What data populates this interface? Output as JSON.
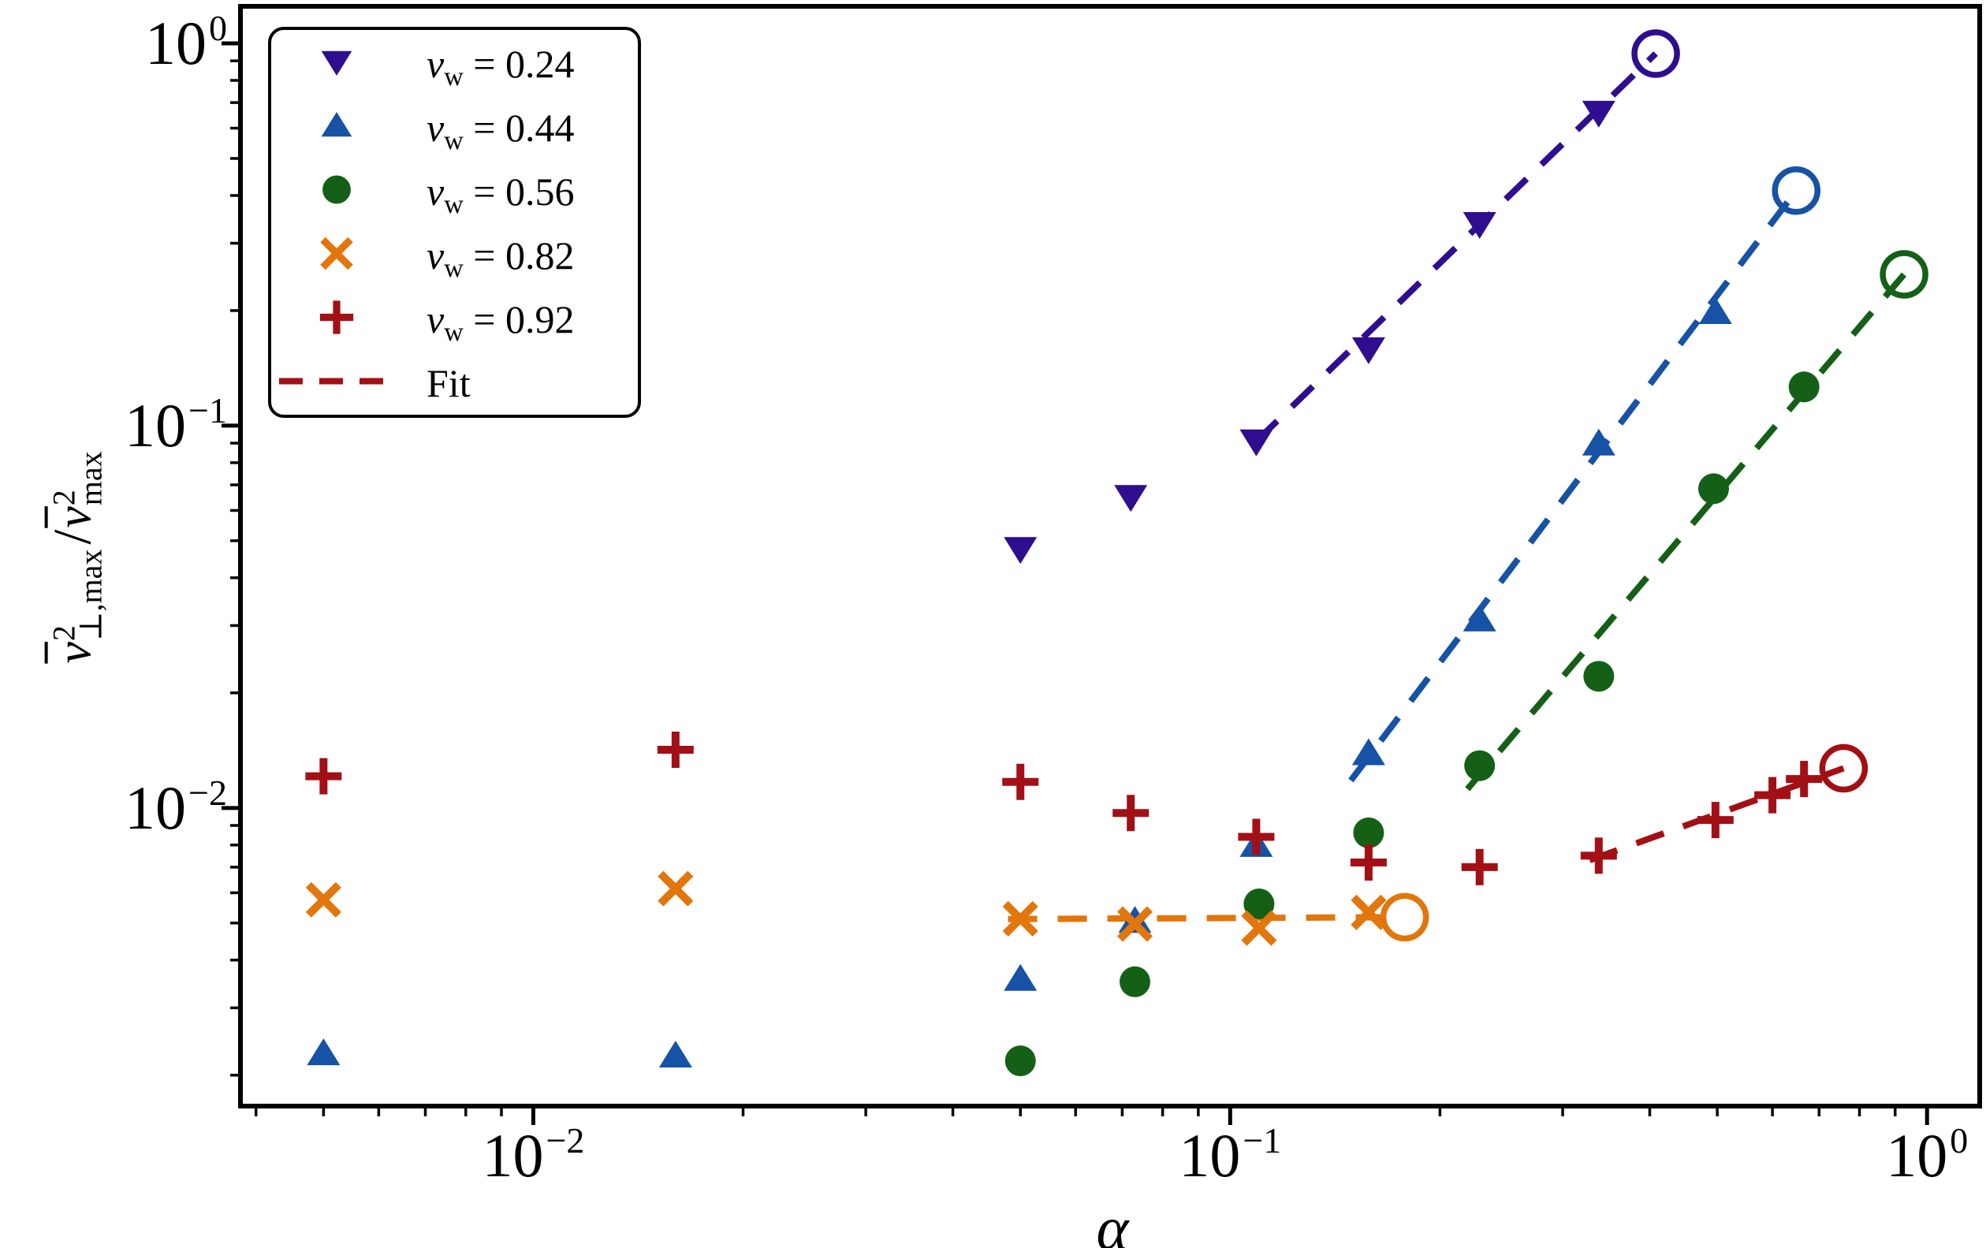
{
  "chart_data": {
    "type": "scatter",
    "title": "",
    "xlabel": "α",
    "ylabel": "v̄²⊥,max/v̄²max",
    "x_scale": "log",
    "y_scale": "log",
    "xlim": [
      0.0038,
      1.19
    ],
    "ylim": [
      0.00166,
      1.25
    ],
    "grid": false,
    "legend_position": "upper left",
    "x_tick_exponents": [
      -2,
      -1,
      0
    ],
    "y_tick_exponents": [
      0,
      -1,
      -2
    ],
    "series": [
      {
        "name": "vw = 0.24",
        "vw": "0.24",
        "marker": "triangle-down",
        "color": "#2f0d8f",
        "points": [
          [
            0.05,
            0.0476
          ],
          [
            0.072,
            0.0651
          ],
          [
            0.109,
            0.091
          ],
          [
            0.158,
            0.1585
          ],
          [
            0.228,
            0.337
          ],
          [
            0.338,
            0.659
          ]
        ],
        "open_circle": [
          0.408,
          0.94
        ],
        "fit_line": [
          [
            0.109,
            0.091
          ],
          [
            0.408,
            0.94
          ]
        ]
      },
      {
        "name": "vw = 0.44",
        "vw": "0.44",
        "marker": "triangle-up",
        "color": "#1652a5",
        "points": [
          [
            0.005,
            0.00228
          ],
          [
            0.016,
            0.00225
          ],
          [
            0.05,
            0.00357
          ],
          [
            0.073,
            0.00506
          ],
          [
            0.109,
            0.008
          ],
          [
            0.158,
            0.0139
          ],
          [
            0.228,
            0.0311
          ],
          [
            0.338,
            0.0897
          ],
          [
            0.497,
            0.198
          ]
        ],
        "open_circle": [
          0.649,
          0.412
        ],
        "fit_line": [
          [
            0.149,
            0.0118
          ],
          [
            0.649,
            0.412
          ]
        ]
      },
      {
        "name": "vw = 0.56",
        "vw": "0.56",
        "marker": "circle",
        "color": "#156017",
        "points": [
          [
            0.05,
            0.00218
          ],
          [
            0.073,
            0.00351
          ],
          [
            0.11,
            0.00561
          ],
          [
            0.158,
            0.00861
          ],
          [
            0.228,
            0.0129
          ],
          [
            0.338,
            0.0221
          ],
          [
            0.494,
            0.0684
          ],
          [
            0.666,
            0.1263
          ]
        ],
        "open_circle": [
          0.927,
          0.2488
        ],
        "fit_line": [
          [
            0.219,
            0.0112
          ],
          [
            0.927,
            0.2488
          ]
        ]
      },
      {
        "name": "vw = 0.82",
        "vw": "0.82",
        "marker": "x",
        "color": "#e1760c",
        "points": [
          [
            0.005,
            0.00575
          ],
          [
            0.016,
            0.00615
          ],
          [
            0.05,
            0.00513
          ],
          [
            0.073,
            0.00497
          ],
          [
            0.11,
            0.00485
          ],
          [
            0.158,
            0.00533
          ]
        ],
        "open_circle": [
          0.178,
          0.00518
        ],
        "fit_line": [
          [
            0.048,
            0.00512
          ],
          [
            0.178,
            0.00518
          ]
        ]
      },
      {
        "name": "vw = 0.92",
        "vw": "0.92",
        "marker": "plus",
        "color": "#a21015",
        "points": [
          [
            0.005,
            0.0121
          ],
          [
            0.016,
            0.0142
          ],
          [
            0.05,
            0.0117
          ],
          [
            0.072,
            0.0097
          ],
          [
            0.109,
            0.0084
          ],
          [
            0.158,
            0.0072
          ],
          [
            0.228,
            0.007
          ],
          [
            0.338,
            0.0075
          ],
          [
            0.497,
            0.0093
          ],
          [
            0.6,
            0.0108
          ],
          [
            0.666,
            0.0119
          ]
        ],
        "open_circle": [
          0.759,
          0.0127
        ],
        "fit_line": [
          [
            0.328,
            0.0073
          ],
          [
            0.759,
            0.0127
          ]
        ]
      }
    ],
    "fit_legend": {
      "label": "Fit",
      "color": "#a21015",
      "style": "dashed"
    }
  },
  "legend": {
    "variable": "v",
    "subscript": "w",
    "equals": "=",
    "values": [
      "0.24",
      "0.44",
      "0.56",
      "0.82",
      "0.92"
    ],
    "fit_label": "Fit"
  },
  "labels": {
    "xlabel": "α",
    "ylabel_numerator": {
      "base": "v",
      "sup": "2",
      "sub": "⊥,max"
    },
    "ylabel_slash": "/",
    "ylabel_denominator": {
      "base": "v",
      "sup": "2",
      "sub": "max"
    }
  }
}
